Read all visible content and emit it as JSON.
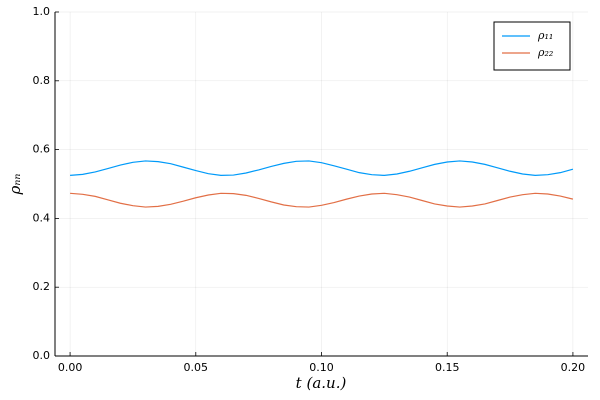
{
  "chart_data": {
    "type": "line",
    "x_label": "t (a.u.)",
    "y_label": "ρₙₙ",
    "x": [
      0,
      0.005,
      0.01,
      0.015,
      0.02,
      0.025,
      0.03,
      0.035,
      0.04,
      0.045,
      0.05,
      0.055,
      0.06,
      0.065,
      0.07,
      0.075,
      0.08,
      0.085,
      0.09,
      0.095,
      0.1,
      0.105,
      0.11,
      0.115,
      0.12,
      0.125,
      0.13,
      0.135,
      0.14,
      0.145,
      0.15,
      0.155,
      0.16,
      0.165,
      0.17,
      0.175,
      0.18,
      0.185,
      0.19,
      0.195,
      0.2
    ],
    "series": [
      {
        "name": "ρ₁₁",
        "color": "#009af9",
        "values": [
          0.525,
          0.528,
          0.535,
          0.545,
          0.555,
          0.563,
          0.567,
          0.565,
          0.559,
          0.549,
          0.539,
          0.53,
          0.525,
          0.526,
          0.532,
          0.541,
          0.551,
          0.56,
          0.566,
          0.567,
          0.562,
          0.553,
          0.543,
          0.533,
          0.527,
          0.525,
          0.529,
          0.537,
          0.547,
          0.557,
          0.564,
          0.567,
          0.564,
          0.557,
          0.547,
          0.537,
          0.529,
          0.525,
          0.527,
          0.533,
          0.543
        ]
      },
      {
        "name": "ρ₂₂",
        "color": "#e26f46",
        "values": [
          0.473,
          0.47,
          0.464,
          0.454,
          0.444,
          0.437,
          0.433,
          0.435,
          0.441,
          0.45,
          0.46,
          0.468,
          0.473,
          0.472,
          0.467,
          0.458,
          0.448,
          0.439,
          0.434,
          0.433,
          0.438,
          0.446,
          0.456,
          0.465,
          0.471,
          0.473,
          0.469,
          0.462,
          0.452,
          0.442,
          0.436,
          0.433,
          0.436,
          0.442,
          0.452,
          0.462,
          0.469,
          0.473,
          0.471,
          0.465,
          0.456
        ]
      }
    ],
    "xlim": [
      -0.006,
      0.206
    ],
    "xticks": [
      {
        "value": 0,
        "label": "0.00"
      },
      0.05,
      {
        "value": 0.1,
        "label": "0.10"
      },
      0.15,
      {
        "value": 0.2,
        "label": "0.20"
      }
    ],
    "ylim": [
      0,
      1
    ],
    "yticks": [
      {
        "value": 0,
        "label": "0.0"
      },
      0.2,
      0.4,
      0.6,
      0.8,
      {
        "value": 1,
        "label": "1.0"
      }
    ],
    "grid": true,
    "legend": "top-right"
  }
}
